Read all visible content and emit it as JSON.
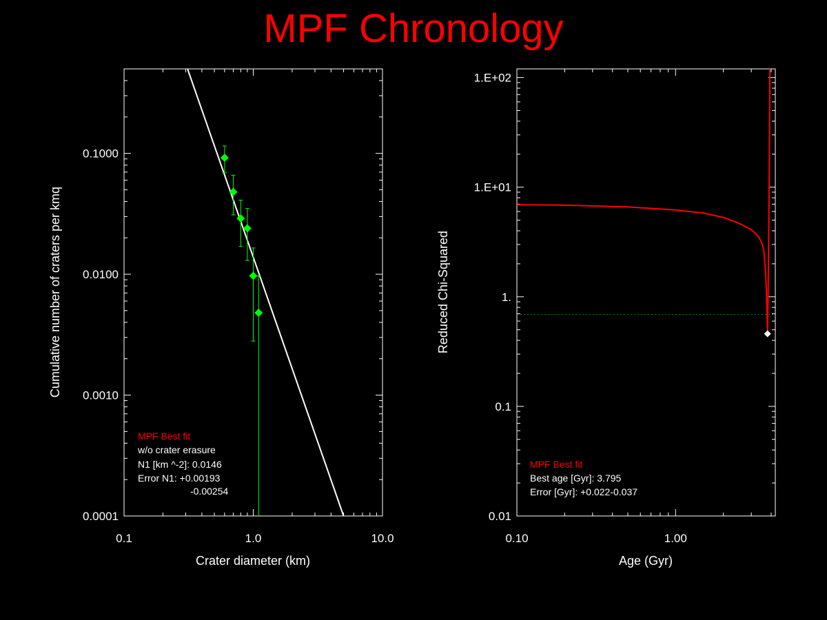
{
  "title": "MPF Chronology",
  "colors": {
    "background": "#000000",
    "title": "#ff0000",
    "axes": "#ffffff",
    "data_points": "#00ff00",
    "fit_line": "#ffffff",
    "chi_curve": "#ff0000",
    "threshold": "#008000",
    "legend_head": "#ff0000"
  },
  "chart_data": [
    {
      "type": "scatter",
      "xlabel": "Crater diameter (km)",
      "ylabel": "Cumulative number of craters per kmq",
      "xscale": "log",
      "yscale": "log",
      "xlim": [
        0.1,
        10.0
      ],
      "ylim": [
        0.0001,
        0.5
      ],
      "xticks": [
        0.1,
        1.0,
        10.0
      ],
      "xtick_labels": [
        "0.1",
        "1.0",
        "10.0"
      ],
      "yticks": [
        0.0001,
        0.001,
        0.01,
        0.1
      ],
      "ytick_labels": [
        "0.0001",
        "0.0010",
        "0.0100",
        "0.1000"
      ],
      "points": [
        {
          "x": 0.6,
          "y": 0.092,
          "ylo": 0.069,
          "yhi": 0.115
        },
        {
          "x": 0.7,
          "y": 0.048,
          "ylo": 0.031,
          "yhi": 0.066
        },
        {
          "x": 0.8,
          "y": 0.029,
          "ylo": 0.017,
          "yhi": 0.041
        },
        {
          "x": 0.9,
          "y": 0.024,
          "ylo": 0.013,
          "yhi": 0.035
        },
        {
          "x": 1.0,
          "y": 0.0097,
          "ylo": 0.0028,
          "yhi": 0.0165
        },
        {
          "x": 1.1,
          "y": 0.0048,
          "ylo": 0.0001,
          "yhi": 0.0097
        }
      ],
      "fit_line": {
        "x": [
          0.31,
          5.0
        ],
        "y": [
          0.5,
          0.0001
        ]
      },
      "legend": {
        "head": "MPF Best fit",
        "lines": [
          "w/o crater erasure",
          "N1 [km ^-2]: 0.0146",
          "Error N1: +0.00193",
          "-0.00254"
        ]
      }
    },
    {
      "type": "line",
      "xlabel": "Age (Gyr)",
      "ylabel": "Reduced Chi-Squared",
      "xscale": "log",
      "yscale": "log",
      "xlim": [
        0.1,
        4.25
      ],
      "ylim": [
        0.01,
        120
      ],
      "xticks": [
        0.1,
        1.0
      ],
      "xtick_labels": [
        "0.10",
        "1.00"
      ],
      "yticks": [
        0.01,
        0.1,
        1,
        10,
        100
      ],
      "ytick_labels": [
        "0.01",
        "0.1",
        "1.",
        "1.E+01",
        "1.E+02"
      ],
      "series": [
        {
          "x": [
            0.1,
            0.2,
            0.5,
            1.0,
            1.5,
            2.0,
            2.5,
            3.0,
            3.3,
            3.5,
            3.6,
            3.7,
            3.75,
            3.795,
            3.82,
            3.86,
            3.9,
            3.93
          ],
          "y": [
            6.9,
            6.85,
            6.6,
            6.2,
            5.8,
            5.3,
            4.7,
            4.1,
            3.6,
            3.1,
            2.6,
            1.6,
            0.9,
            0.46,
            0.8,
            3.5,
            20,
            120
          ]
        }
      ],
      "best_point": {
        "x": 3.795,
        "y": 0.46
      },
      "threshold_y": 0.69,
      "legend": {
        "head": "MPF Best fit",
        "lines": [
          "Best age [Gyr]: 3.795",
          "Error [Gyr]: +0.022-0.037"
        ]
      }
    }
  ]
}
